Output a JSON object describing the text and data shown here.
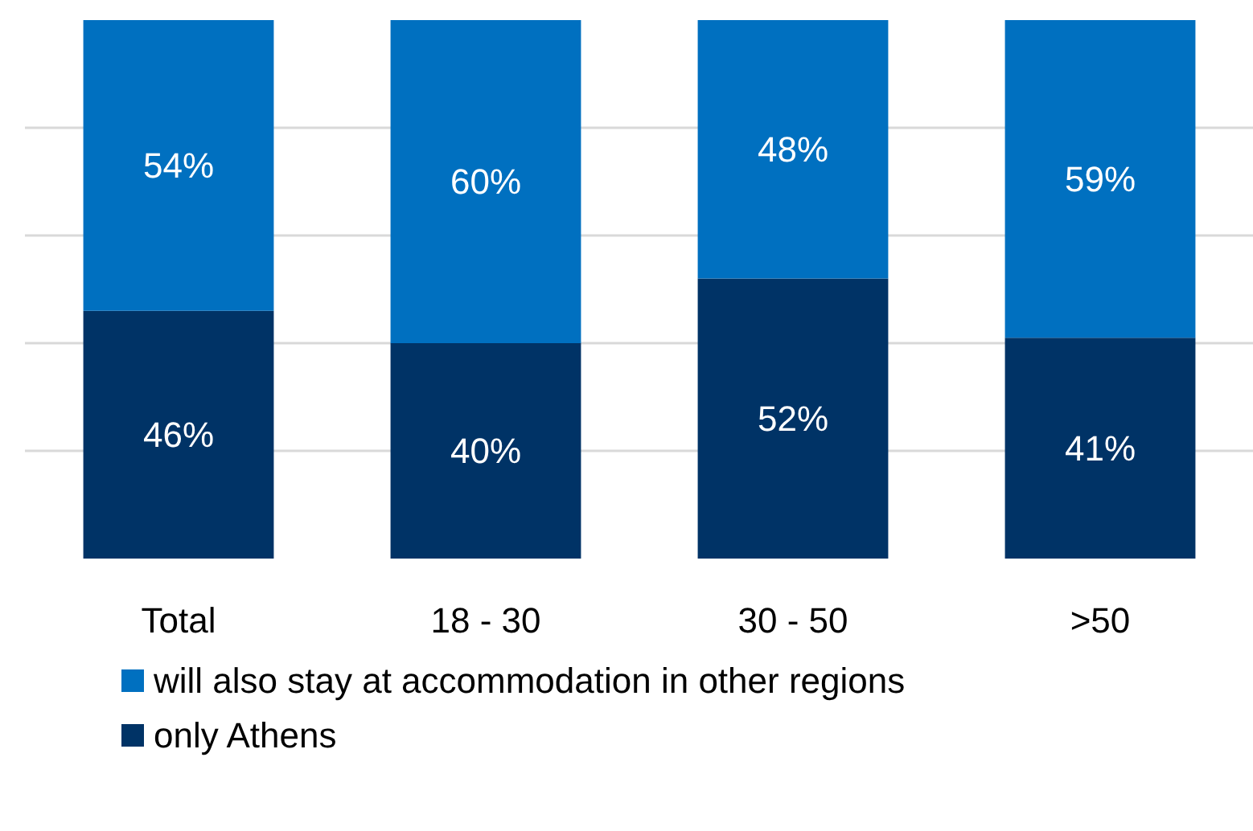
{
  "chart_data": {
    "type": "bar",
    "stacked": true,
    "categories": [
      "Total",
      "18 - 30",
      "30 - 50",
      ">50"
    ],
    "series": [
      {
        "name": "only Athens",
        "color": "#003366",
        "values": [
          46,
          40,
          52,
          41
        ],
        "value_labels": [
          "46%",
          "40%",
          "52%",
          "41%"
        ]
      },
      {
        "name": "will also stay at accommodation in other regions",
        "color": "#0070c0",
        "values": [
          54,
          60,
          48,
          59
        ],
        "value_labels": [
          "54%",
          "60%",
          "48%",
          "59%"
        ]
      }
    ],
    "tick_labels": "x",
    "grid": "y",
    "legend": "bottom"
  }
}
